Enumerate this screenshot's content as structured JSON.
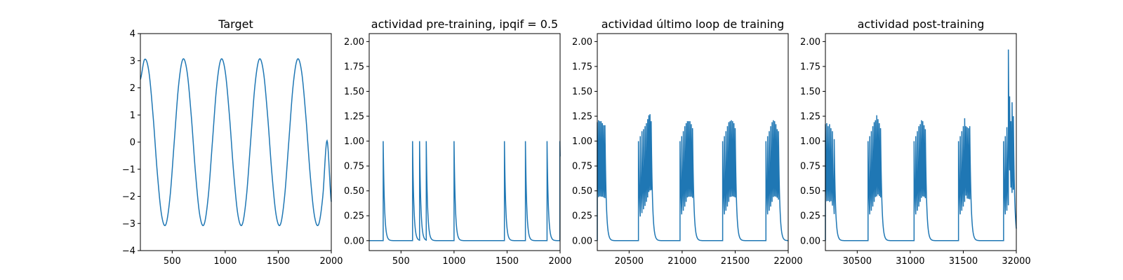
{
  "chart_data": [
    {
      "type": "line",
      "title": "Target",
      "xlabel": "",
      "ylabel": "",
      "xlim": [
        200,
        2000
      ],
      "ylim": [
        -4,
        4
      ],
      "xticks": [
        500,
        1000,
        1500,
        2000
      ],
      "yticks": [
        -4,
        -3,
        -2,
        -1,
        0,
        1,
        2,
        3,
        4
      ],
      "xtick_labels": [
        "500",
        "1000",
        "1500",
        "2000"
      ],
      "ytick_labels": [
        "−4",
        "−3",
        "−2",
        "−1",
        "0",
        "1",
        "2",
        "3",
        "4"
      ],
      "grid": false,
      "line_color": "#1f77b4",
      "series": [
        {
          "x": [
            200,
            240,
            280,
            320,
            360,
            400,
            440,
            480,
            520,
            560,
            600,
            640,
            680,
            720,
            760,
            800,
            840,
            880,
            920,
            960,
            1000,
            1040,
            1080,
            1120,
            1160,
            1200,
            1240,
            1280,
            1320,
            1360,
            1400,
            1440,
            1480,
            1520,
            1560,
            1600,
            1640,
            1680,
            1720,
            1760,
            1800,
            1840,
            1880,
            1920,
            1960,
            2000
          ],
          "y": [
            2.31,
            3.05,
            2.6,
            0.96,
            -1.15,
            -2.69,
            -3.04,
            -2.0,
            0.05,
            2.08,
            3.05,
            2.6,
            0.96,
            -1.15,
            -2.69,
            -3.04,
            -2.0,
            0.05,
            2.08,
            3.05,
            2.6,
            0.96,
            -1.15,
            -2.69,
            -3.04,
            -2.0,
            0.05,
            2.08,
            3.05,
            2.6,
            0.96,
            -1.15,
            -2.69,
            -3.04,
            -2.0,
            0.05,
            2.08,
            3.05,
            2.6,
            0.96,
            -1.15,
            -2.69,
            -3.04,
            -2.0,
            0.05,
            -2.2
          ]
        }
      ]
    },
    {
      "type": "line",
      "title": "actividad pre-training, ipqif = 0.5",
      "xlabel": "",
      "ylabel": "",
      "xlim": [
        200,
        2000
      ],
      "ylim": [
        -0.1,
        2.08
      ],
      "xticks": [
        500,
        1000,
        1500,
        2000
      ],
      "yticks": [
        0,
        0.25,
        0.5,
        0.75,
        1.0,
        1.25,
        1.5,
        1.75,
        2.0
      ],
      "xtick_labels": [
        "500",
        "1000",
        "1500",
        "2000"
      ],
      "ytick_labels": [
        "0.00",
        "0.25",
        "0.50",
        "0.75",
        "1.00",
        "1.25",
        "1.50",
        "1.75",
        "2.00"
      ],
      "grid": false,
      "line_color": "#1f77b4",
      "spike_decay": 12,
      "baseline": 0,
      "spikes": [
        {
          "x": 332,
          "peak": 1.0
        },
        {
          "x": 609,
          "peak": 1.0
        },
        {
          "x": 675,
          "peak": 1.0
        },
        {
          "x": 738,
          "peak": 1.0
        },
        {
          "x": 1000,
          "peak": 1.0
        },
        {
          "x": 1475,
          "peak": 1.0
        },
        {
          "x": 1673,
          "peak": 1.0
        },
        {
          "x": 1877,
          "peak": 1.0
        },
        {
          "x": 1998,
          "peak": 1.0
        }
      ]
    },
    {
      "type": "line",
      "title": "actividad último loop de training",
      "xlabel": "",
      "ylabel": "",
      "xlim": [
        20200,
        22000
      ],
      "ylim": [
        -0.1,
        2.08
      ],
      "xticks": [
        20500,
        21000,
        21500,
        22000
      ],
      "yticks": [
        0,
        0.25,
        0.5,
        0.75,
        1.0,
        1.25,
        1.5,
        1.75,
        2.0
      ],
      "xtick_labels": [
        "20500",
        "21000",
        "21500",
        "22000"
      ],
      "ytick_labels": [
        "0.00",
        "0.25",
        "0.50",
        "0.75",
        "1.00",
        "1.25",
        "1.50",
        "1.75",
        "2.00"
      ],
      "grid": false,
      "line_color": "#1f77b4",
      "spike_decay": 12,
      "baseline": 0,
      "spikes": [
        {
          "x": 20200,
          "peak": 1.19
        },
        {
          "x": 20212,
          "peak": 1.21
        },
        {
          "x": 20224,
          "peak": 1.2
        },
        {
          "x": 20236,
          "peak": 1.2
        },
        {
          "x": 20248,
          "peak": 1.18
        },
        {
          "x": 20260,
          "peak": 1.16
        },
        {
          "x": 20272,
          "peak": 1.16
        },
        {
          "x": 20588,
          "peak": 1.0
        },
        {
          "x": 20605,
          "peak": 1.05
        },
        {
          "x": 20621,
          "peak": 1.1
        },
        {
          "x": 20636,
          "peak": 1.12
        },
        {
          "x": 20650,
          "peak": 1.15
        },
        {
          "x": 20663,
          "peak": 1.18
        },
        {
          "x": 20675,
          "peak": 1.22
        },
        {
          "x": 20686,
          "peak": 1.26
        },
        {
          "x": 20697,
          "peak": 1.27
        },
        {
          "x": 20708,
          "peak": 1.2
        },
        {
          "x": 20980,
          "peak": 1.0
        },
        {
          "x": 20996,
          "peak": 1.05
        },
        {
          "x": 21011,
          "peak": 1.1
        },
        {
          "x": 21025,
          "peak": 1.15
        },
        {
          "x": 21038,
          "peak": 1.18
        },
        {
          "x": 21050,
          "peak": 1.2
        },
        {
          "x": 21062,
          "peak": 1.2
        },
        {
          "x": 21074,
          "peak": 1.2
        },
        {
          "x": 21086,
          "peak": 1.17
        },
        {
          "x": 21098,
          "peak": 1.13
        },
        {
          "x": 21382,
          "peak": 1.0
        },
        {
          "x": 21398,
          "peak": 1.05
        },
        {
          "x": 21413,
          "peak": 1.1
        },
        {
          "x": 21427,
          "peak": 1.15
        },
        {
          "x": 21440,
          "peak": 1.19
        },
        {
          "x": 21452,
          "peak": 1.2
        },
        {
          "x": 21464,
          "peak": 1.21
        },
        {
          "x": 21476,
          "peak": 1.2
        },
        {
          "x": 21488,
          "peak": 1.18
        },
        {
          "x": 21500,
          "peak": 1.13
        },
        {
          "x": 21790,
          "peak": 1.0
        },
        {
          "x": 21806,
          "peak": 1.05
        },
        {
          "x": 21821,
          "peak": 1.1
        },
        {
          "x": 21835,
          "peak": 1.15
        },
        {
          "x": 21848,
          "peak": 1.19
        },
        {
          "x": 21860,
          "peak": 1.21
        },
        {
          "x": 21872,
          "peak": 1.2
        },
        {
          "x": 21884,
          "peak": 1.17
        },
        {
          "x": 21896,
          "peak": 1.12
        },
        {
          "x": 21908,
          "peak": 1.1
        }
      ]
    },
    {
      "type": "line",
      "title": "actividad post-training",
      "xlabel": "",
      "ylabel": "",
      "xlim": [
        30200,
        32000
      ],
      "ylim": [
        -0.1,
        2.08
      ],
      "xticks": [
        30500,
        31000,
        31500,
        32000
      ],
      "yticks": [
        0,
        0.25,
        0.5,
        0.75,
        1.0,
        1.25,
        1.5,
        1.75,
        2.0
      ],
      "xtick_labels": [
        "30500",
        "31000",
        "31500",
        "32000"
      ],
      "ytick_labels": [
        "0.00",
        "0.25",
        "0.50",
        "0.75",
        "1.00",
        "1.25",
        "1.50",
        "1.75",
        "2.00"
      ],
      "grid": false,
      "line_color": "#1f77b4",
      "spike_decay": 12,
      "baseline": 0,
      "spikes": [
        {
          "x": 30200,
          "peak": 1.17
        },
        {
          "x": 30213,
          "peak": 1.18
        },
        {
          "x": 30226,
          "peak": 1.15
        },
        {
          "x": 30239,
          "peak": 1.17
        },
        {
          "x": 30252,
          "peak": 1.13
        },
        {
          "x": 30266,
          "peak": 1.1
        },
        {
          "x": 30283,
          "peak": 1.02
        },
        {
          "x": 30602,
          "peak": 1.0
        },
        {
          "x": 30618,
          "peak": 1.05
        },
        {
          "x": 30633,
          "peak": 1.1
        },
        {
          "x": 30647,
          "peak": 1.15
        },
        {
          "x": 30660,
          "peak": 1.19
        },
        {
          "x": 30672,
          "peak": 1.21
        },
        {
          "x": 30684,
          "peak": 1.26
        },
        {
          "x": 30696,
          "peak": 1.22
        },
        {
          "x": 30708,
          "peak": 1.18
        },
        {
          "x": 30720,
          "peak": 1.13
        },
        {
          "x": 31036,
          "peak": 1.0
        },
        {
          "x": 31052,
          "peak": 1.05
        },
        {
          "x": 31067,
          "peak": 1.1
        },
        {
          "x": 31081,
          "peak": 1.15
        },
        {
          "x": 31094,
          "peak": 1.17
        },
        {
          "x": 31106,
          "peak": 1.21
        },
        {
          "x": 31118,
          "peak": 1.2
        },
        {
          "x": 31130,
          "peak": 1.16
        },
        {
          "x": 31142,
          "peak": 1.12
        },
        {
          "x": 31455,
          "peak": 1.0
        },
        {
          "x": 31471,
          "peak": 1.05
        },
        {
          "x": 31486,
          "peak": 1.1
        },
        {
          "x": 31500,
          "peak": 1.15
        },
        {
          "x": 31513,
          "peak": 1.23
        },
        {
          "x": 31525,
          "peak": 1.15
        },
        {
          "x": 31537,
          "peak": 1.14
        },
        {
          "x": 31549,
          "peak": 1.13
        },
        {
          "x": 31561,
          "peak": 1.15
        },
        {
          "x": 31880,
          "peak": 1.0
        },
        {
          "x": 31896,
          "peak": 1.05
        },
        {
          "x": 31911,
          "peak": 1.14
        },
        {
          "x": 31925,
          "peak": 1.92
        },
        {
          "x": 31937,
          "peak": 1.45
        },
        {
          "x": 31949,
          "peak": 1.2
        },
        {
          "x": 31960,
          "peak": 1.39
        },
        {
          "x": 31972,
          "peak": 1.25
        }
      ]
    }
  ]
}
